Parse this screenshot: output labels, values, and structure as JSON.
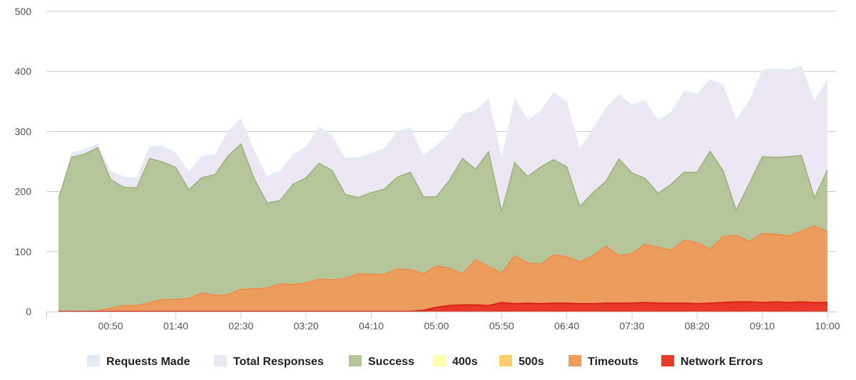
{
  "chart_data": {
    "type": "area",
    "ylim": [
      0,
      500
    ],
    "yticks": [
      0,
      100,
      200,
      300,
      400,
      500
    ],
    "x_start": "00:10",
    "x_step_minutes": 10,
    "xticks": [
      "00:50",
      "01:40",
      "02:30",
      "03:20",
      "04:10",
      "05:00",
      "05:50",
      "06:40",
      "07:30",
      "08:20",
      "09:10",
      "10:00"
    ],
    "grid": true,
    "legend_position": "bottom",
    "series": [
      {
        "name": "Requests Made",
        "color": "#e3ecf5",
        "values": [
          188,
          265,
          270,
          280,
          235,
          225,
          223,
          276,
          276,
          265,
          233,
          260,
          262,
          300,
          322,
          270,
          225,
          235,
          262,
          275,
          308,
          293,
          256,
          257,
          264,
          272,
          300,
          307,
          260,
          277,
          298,
          330,
          335,
          355,
          258,
          356,
          320,
          335,
          366,
          350,
          272,
          305,
          340,
          362,
          345,
          352,
          320,
          332,
          368,
          363,
          387,
          378,
          320,
          352,
          403,
          405,
          403,
          410,
          352,
          387
        ]
      },
      {
        "name": "Total Responses",
        "color": "#ede7f4",
        "values": [
          188,
          262,
          266,
          276,
          230,
          220,
          218,
          270,
          270,
          260,
          228,
          255,
          258,
          295,
          315,
          265,
          220,
          228,
          257,
          270,
          302,
          288,
          250,
          252,
          258,
          266,
          294,
          300,
          255,
          270,
          292,
          325,
          330,
          350,
          252,
          350,
          315,
          330,
          360,
          345,
          268,
          300,
          335,
          356,
          340,
          346,
          315,
          326,
          362,
          357,
          381,
          372,
          315,
          346,
          398,
          400,
          398,
          404,
          346,
          380
        ]
      },
      {
        "name": "Success",
        "color": "#b5c69a",
        "stroke": "#9bb07c",
        "values": [
          188,
          257,
          262,
          273,
          220,
          207,
          206,
          255,
          249,
          240,
          203,
          223,
          228,
          259,
          279,
          222,
          181,
          185,
          212,
          223,
          247,
          235,
          195,
          190,
          198,
          204,
          224,
          232,
          191,
          191,
          219,
          255,
          237,
          266,
          166,
          248,
          225,
          241,
          253,
          241,
          175,
          198,
          217,
          254,
          231,
          222,
          197,
          212,
          232,
          232,
          267,
          234,
          169,
          213,
          258,
          257,
          258,
          260,
          189,
          236
        ]
      },
      {
        "name": "400s",
        "color": "#ffffb0",
        "values": [
          0,
          0,
          0,
          0,
          0,
          0,
          0,
          0,
          0,
          0,
          0,
          0,
          0,
          0,
          0,
          0,
          0,
          0,
          0,
          0,
          0,
          0,
          0,
          0,
          0,
          0,
          0,
          0,
          0,
          0,
          0,
          0,
          0,
          0,
          0,
          0,
          0,
          0,
          0,
          0,
          0,
          0,
          0,
          0,
          0,
          0,
          0,
          0,
          0,
          0,
          0,
          0,
          0,
          0,
          0,
          0,
          0,
          0,
          0,
          0
        ]
      },
      {
        "name": "500s",
        "color": "#ffcc6a",
        "values": [
          0,
          0,
          0,
          0,
          0,
          0,
          0,
          0,
          0,
          0,
          0,
          0,
          0,
          0,
          0,
          0,
          0,
          0,
          0,
          0,
          0,
          0,
          0,
          0,
          0,
          0,
          0,
          0,
          0,
          0,
          0,
          0,
          0,
          0,
          0,
          0,
          0,
          0,
          0,
          0,
          0,
          0,
          0,
          0,
          0,
          0,
          0,
          0,
          0,
          0,
          0,
          0,
          0,
          0,
          0,
          0,
          0,
          0,
          0,
          0
        ]
      },
      {
        "name": "Timeouts",
        "color": "#ec9c5c",
        "stroke": "#f08a48",
        "values": [
          0,
          0,
          0,
          1,
          6,
          10,
          10,
          15,
          20,
          20,
          22,
          31,
          27,
          28,
          37,
          38,
          39,
          46,
          45,
          48,
          54,
          53,
          55,
          63,
          62,
          62,
          71,
          70,
          63,
          76,
          72,
          63,
          86,
          75,
          64,
          93,
          81,
          79,
          95,
          91,
          83,
          93,
          109,
          93,
          97,
          112,
          107,
          102,
          119,
          115,
          104,
          125,
          127,
          117,
          130,
          129,
          126,
          134,
          143,
          133
        ]
      },
      {
        "name": "Network Errors",
        "color": "#e8392a",
        "values": [
          0,
          0,
          0,
          0,
          0,
          0,
          0,
          0,
          0,
          0,
          0,
          0,
          0,
          0,
          0,
          0,
          0,
          0,
          0,
          0,
          0,
          0,
          0,
          0,
          0,
          0,
          0,
          0,
          2,
          7,
          10,
          11,
          11,
          10,
          15,
          13,
          14,
          13,
          14,
          14,
          13,
          13,
          14,
          14,
          14,
          15,
          14,
          14,
          14,
          13,
          14,
          15,
          16,
          16,
          15,
          16,
          15,
          16,
          15,
          15
        ]
      }
    ]
  }
}
